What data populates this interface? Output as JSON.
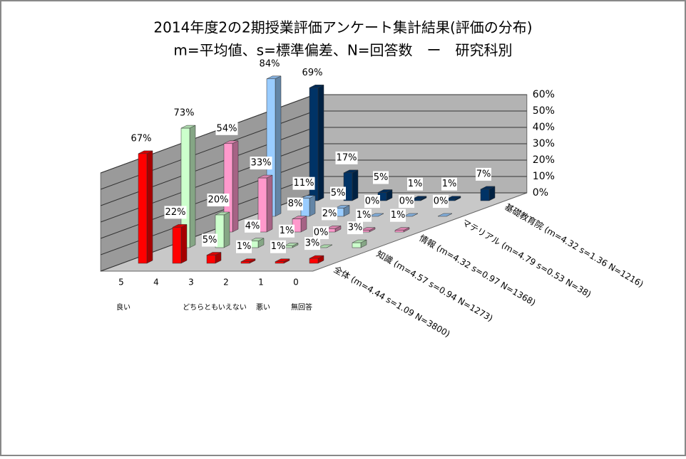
{
  "chart_data": {
    "type": "bar3d",
    "title": "2014年度2の2期授業評価アンケート集計結果(評価の分布)",
    "subtitle": "m=平均値、s=標準偏差、N=回答数　ー　研究科別",
    "categories": [
      "5",
      "4",
      "3",
      "2",
      "1",
      "0"
    ],
    "category_notes": [
      "良い",
      null,
      "どちらともいえない",
      null,
      "悪い",
      "無回答"
    ],
    "ylim": [
      0,
      60
    ],
    "yticks": [
      {
        "value": 0,
        "label": "0%"
      },
      {
        "value": 10,
        "label": "10%"
      },
      {
        "value": 20,
        "label": "20%"
      },
      {
        "value": 30,
        "label": "30%"
      },
      {
        "value": 40,
        "label": "40%"
      },
      {
        "value": 50,
        "label": "50%"
      },
      {
        "value": 60,
        "label": "60%"
      }
    ],
    "grid": true,
    "series": [
      {
        "name": "全体 (m=4.44 s=1.09 N=3800)",
        "color": "#ff0000",
        "values": [
          67,
          22,
          5,
          1,
          1,
          3
        ],
        "value_labels": [
          "67%",
          "22%",
          "5%",
          "1%",
          "1%",
          "3%"
        ]
      },
      {
        "name": "知識 (m=4.57 s=0.94 N=1273)",
        "color": "#ccffcc",
        "values": [
          73,
          20,
          4,
          1,
          0,
          3
        ],
        "value_labels": [
          "73%",
          "20%",
          "4%",
          "1%",
          "0%",
          "3%"
        ]
      },
      {
        "name": "情報 (m=4.32 s=0.97 N=1368)",
        "color": "#ff99cc",
        "values": [
          54,
          33,
          8,
          2,
          1,
          1
        ],
        "value_labels": [
          "54%",
          "33%",
          "8%",
          "2%",
          "1%",
          "1%"
        ]
      },
      {
        "name": "マテリアル (m=4.79 s=0.53 N=38)",
        "color": "#99ccff",
        "values": [
          84,
          11,
          5,
          0,
          0,
          0
        ],
        "value_labels": [
          "84%",
          "11%",
          "5%",
          "0%",
          "0%",
          "0%"
        ]
      },
      {
        "name": "基礎教育院 (m=4.32 s=1.36 N=1216)",
        "color": "#003366",
        "values": [
          69,
          17,
          5,
          1,
          1,
          7
        ],
        "value_labels": [
          "69%",
          "17%",
          "5%",
          "1%",
          "1%",
          "7%"
        ]
      }
    ]
  }
}
